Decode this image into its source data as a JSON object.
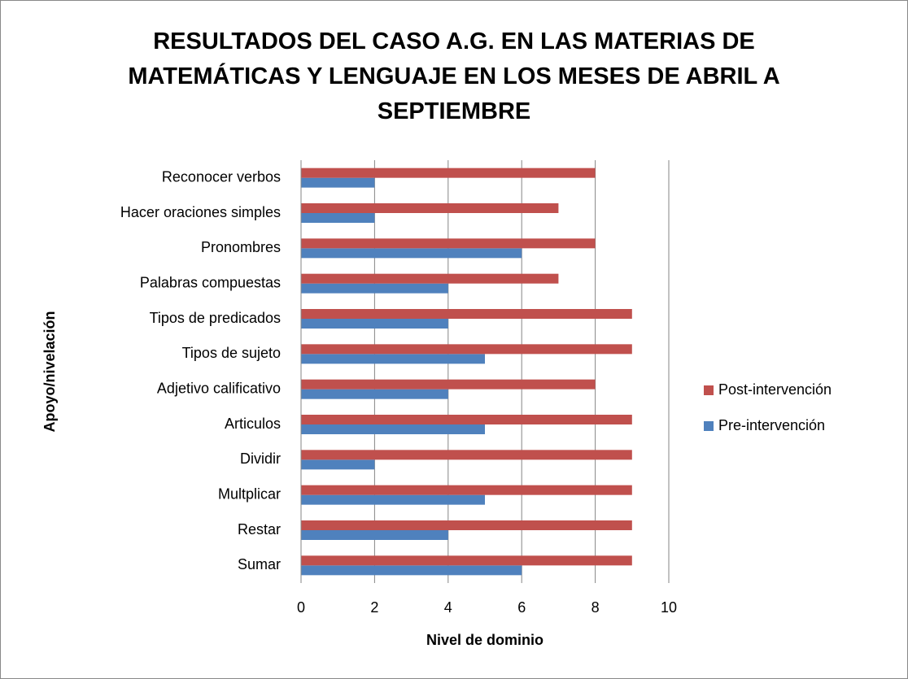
{
  "chart_data": {
    "type": "bar",
    "orientation": "horizontal",
    "title": "RESULTADOS DEL CASO A.G. EN LAS MATERIAS DE MATEMÁTICAS Y LENGUAJE EN LOS MESES DE ABRIL A SEPTIEMBRE",
    "x_label": "Nivel de dominio",
    "y_label": "Apoyo/nivelación",
    "categories": [
      "Sumar",
      "Restar",
      "Multplicar",
      "Dividir",
      "Articulos",
      "Adjetivo calificativo",
      "Tipos de sujeto",
      "Tipos de predicados",
      "Palabras compuestas",
      "Pronombres",
      "Hacer oraciones simples",
      "Reconocer verbos"
    ],
    "series": [
      {
        "name": "Pre-intervención",
        "color": "#4f81bd",
        "values": [
          6,
          4,
          5,
          2,
          5,
          4,
          5,
          4,
          4,
          6,
          2,
          2
        ]
      },
      {
        "name": "Post-intervención",
        "color": "#c0504d",
        "values": [
          9,
          9,
          9,
          9,
          9,
          8,
          9,
          9,
          7,
          8,
          7,
          8
        ]
      }
    ],
    "xlim": [
      0,
      10
    ],
    "xticks": [
      0,
      2,
      4,
      6,
      8,
      10
    ],
    "grid": true,
    "legend": "right"
  }
}
